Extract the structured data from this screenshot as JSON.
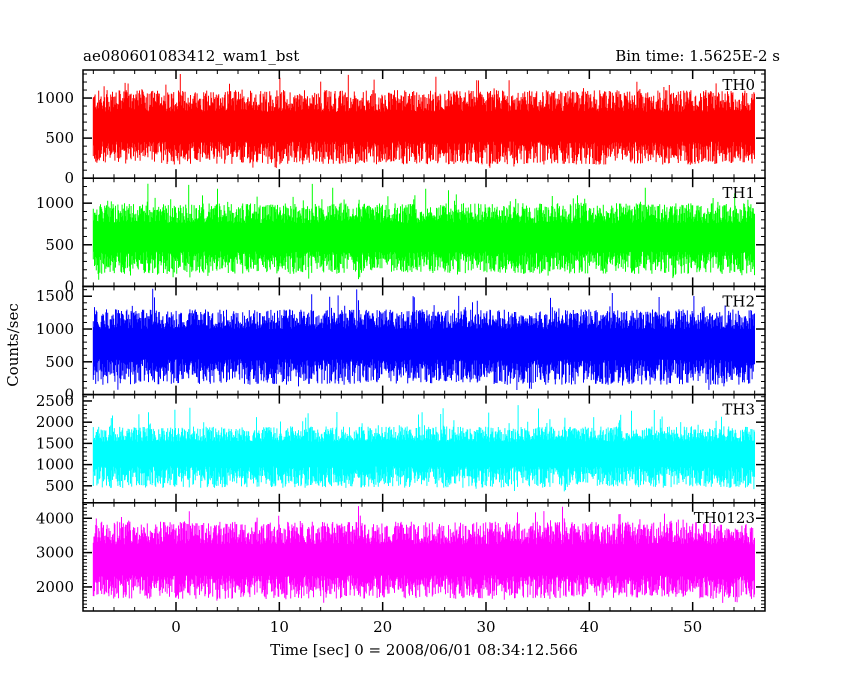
{
  "header": {
    "title": "ae080601083412_wam1_bst",
    "bin_time": "Bin time: 1.5625E-2 s"
  },
  "chart_data": {
    "type": "line",
    "title": "ae080601083412_wam1_bst",
    "subtitle": "Bin time: 1.5625E-2 s",
    "xlabel": "Time [sec] 0 = 2008/06/01 08:34:12.566",
    "ylabel": "Counts/sec",
    "xlim": [
      -9,
      57
    ],
    "data_x_range": [
      -8,
      56
    ],
    "x_ticks": [
      0,
      10,
      20,
      30,
      40,
      50
    ],
    "grid": false,
    "legend": "none",
    "panels": [
      {
        "name": "TH0",
        "color": "#ff0000",
        "ylim": [
          0,
          1350
        ],
        "y_ticks": [
          0,
          500,
          1000
        ],
        "baseline": 50,
        "low": 170,
        "mean": 650,
        "high": 1100,
        "peak": 1330
      },
      {
        "name": "TH1",
        "color": "#00ff00",
        "ylim": [
          0,
          1300
        ],
        "y_ticks": [
          0,
          500,
          1000
        ],
        "baseline": 50,
        "low": 150,
        "mean": 600,
        "high": 1000,
        "peak": 1260
      },
      {
        "name": "TH2",
        "color": "#0000ff",
        "ylim": [
          0,
          1650
        ],
        "y_ticks": [
          0,
          500,
          1000,
          1500
        ],
        "baseline": 50,
        "low": 150,
        "mean": 800,
        "high": 1300,
        "peak": 1640
      },
      {
        "name": "TH3",
        "color": "#00ffff",
        "ylim": [
          100,
          2650
        ],
        "y_ticks": [
          500,
          1000,
          1500,
          2000,
          2500
        ],
        "baseline": 300,
        "low": 450,
        "mean": 1300,
        "high": 1900,
        "peak": 2450
      },
      {
        "name": "TH0123",
        "color": "#ff00ff",
        "ylim": [
          1300,
          4450
        ],
        "y_ticks": [
          2000,
          3000,
          4000
        ],
        "baseline": 1500,
        "low": 1650,
        "mean": 2800,
        "high": 3900,
        "peak": 4400
      }
    ]
  }
}
